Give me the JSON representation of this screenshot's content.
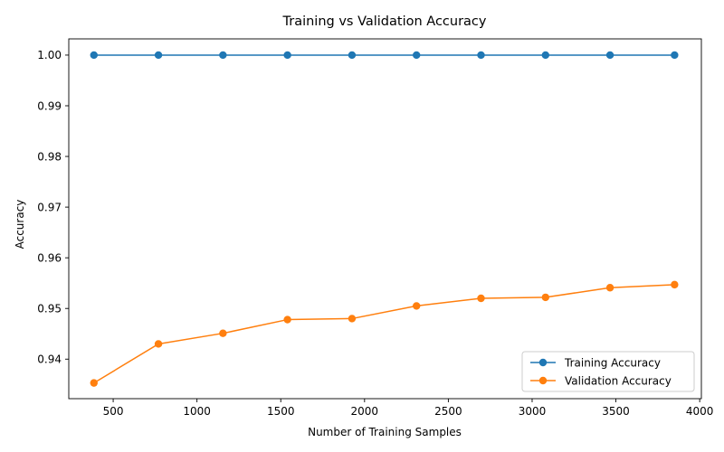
{
  "chart_data": {
    "type": "line",
    "title": "Training vs Validation Accuracy",
    "xlabel": "Number of Training Samples",
    "ylabel": "Accuracy",
    "xlim": [
      235,
      4010
    ],
    "ylim": [
      0.9322,
      1.0032
    ],
    "xticks": [
      500,
      1000,
      1500,
      2000,
      2500,
      3000,
      3500,
      4000
    ],
    "yticks": [
      0.94,
      0.95,
      0.96,
      0.97,
      0.98,
      0.99,
      1.0
    ],
    "xtick_labels": [
      "500",
      "1000",
      "1500",
      "2000",
      "2500",
      "3000",
      "3500",
      "4000"
    ],
    "ytick_labels": [
      "0.94",
      "0.95",
      "0.96",
      "0.97",
      "0.98",
      "0.99",
      "1.00"
    ],
    "grid": false,
    "legend_position": "bottom-right",
    "x": [
      385,
      770,
      1155,
      1540,
      1925,
      2310,
      2695,
      3080,
      3465,
      3850
    ],
    "series": [
      {
        "name": "Training Accuracy",
        "color": "#1f77b4",
        "marker": "circle",
        "values": [
          1.0,
          1.0,
          1.0,
          1.0,
          1.0,
          1.0,
          1.0,
          1.0,
          1.0,
          1.0
        ]
      },
      {
        "name": "Validation Accuracy",
        "color": "#ff7f0e",
        "marker": "circle",
        "values": [
          0.9353,
          0.943,
          0.9451,
          0.9478,
          0.948,
          0.9505,
          0.952,
          0.9522,
          0.9541,
          0.9547
        ]
      }
    ]
  }
}
